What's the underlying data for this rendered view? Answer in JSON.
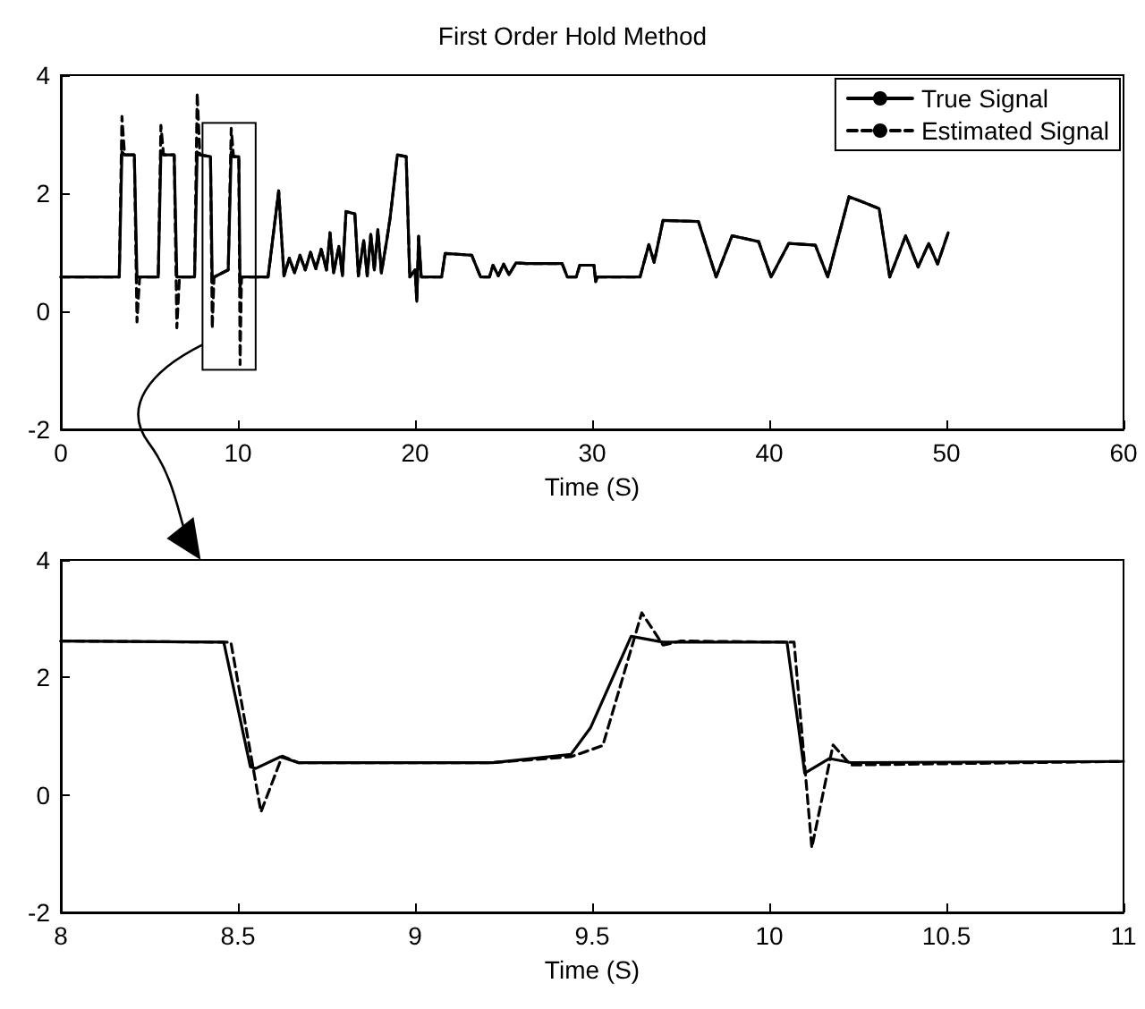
{
  "chart_data": [
    {
      "type": "line",
      "title": "First Order Hold Method",
      "xlabel": "Time (S)",
      "xlim": [
        0,
        60
      ],
      "xticks": [
        0,
        10,
        20,
        30,
        40,
        50,
        60
      ],
      "ylim": [
        -2,
        4
      ],
      "yticks": [
        -2,
        0,
        2,
        4
      ],
      "grid": false,
      "legend": "top right",
      "marker": "none",
      "x": [
        0,
        3.3,
        3.45,
        3.6,
        4.15,
        4.3,
        4.45,
        5.5,
        5.65,
        5.8,
        6.4,
        6.55,
        6.7,
        7.55,
        7.7,
        7.85,
        8.45,
        8.55,
        8.65,
        9.45,
        9.62,
        9.75,
        10.05,
        10.12,
        10.2,
        11.7,
        12.3,
        12.6,
        12.9,
        13.2,
        13.5,
        13.8,
        14.1,
        14.4,
        14.7,
        15.0,
        15.2,
        15.4,
        15.7,
        15.9,
        16.1,
        16.6,
        16.8,
        17.1,
        17.3,
        17.5,
        17.7,
        17.9,
        18.1,
        18.4,
        18.6,
        19.0,
        19.5,
        19.7,
        20.0,
        20.1,
        20.2,
        20.35,
        21.5,
        21.7,
        23.2,
        23.7,
        24.2,
        24.4,
        24.7,
        25.0,
        25.3,
        25.7,
        26.3,
        28.3,
        28.6,
        29.1,
        29.3,
        30.1,
        30.2,
        30.3,
        32.7,
        33.2,
        33.5,
        34.0,
        36.0,
        37.0,
        37.9,
        39.4,
        40.1,
        41.1,
        42.6,
        43.3,
        44.5,
        45.3,
        46.2,
        46.8,
        47.7,
        48.4,
        49.0,
        49.5,
        50.1
      ],
      "series": [
        {
          "name": "True Signal",
          "color": "#000000",
          "line_style": "solid",
          "values": [
            0.58,
            0.58,
            2.7,
            2.65,
            2.65,
            0.58,
            0.58,
            0.58,
            2.7,
            2.65,
            2.65,
            0.58,
            0.58,
            0.58,
            2.7,
            2.65,
            2.62,
            0.48,
            0.58,
            0.7,
            2.7,
            2.62,
            2.62,
            0.4,
            0.58,
            0.58,
            2.04,
            0.6,
            0.9,
            0.65,
            0.95,
            0.7,
            1.0,
            0.72,
            1.05,
            0.7,
            1.33,
            0.65,
            1.1,
            0.6,
            1.69,
            1.65,
            0.6,
            1.2,
            0.6,
            1.3,
            0.7,
            1.38,
            0.65,
            1.2,
            1.6,
            2.65,
            2.62,
            0.58,
            0.7,
            0.17,
            1.27,
            0.58,
            0.58,
            0.98,
            0.95,
            0.58,
            0.58,
            0.78,
            0.6,
            0.8,
            0.62,
            0.82,
            0.81,
            0.81,
            0.58,
            0.58,
            0.78,
            0.78,
            0.5,
            0.58,
            0.58,
            1.13,
            0.83,
            1.54,
            1.52,
            0.58,
            1.28,
            1.18,
            0.58,
            1.15,
            1.12,
            0.58,
            1.94,
            1.85,
            1.74,
            0.58,
            1.28,
            0.75,
            1.15,
            0.8,
            1.33
          ]
        },
        {
          "name": "Estimated Signal",
          "color": "#000000",
          "line_style": "dashed",
          "values": [
            0.58,
            0.58,
            3.3,
            2.65,
            2.65,
            -0.18,
            0.58,
            0.58,
            3.15,
            2.65,
            2.65,
            -0.28,
            0.58,
            0.58,
            3.7,
            2.65,
            2.62,
            -0.29,
            0.58,
            0.7,
            3.1,
            2.62,
            2.62,
            -0.9,
            0.58,
            0.58,
            2.04,
            0.6,
            0.9,
            0.65,
            0.95,
            0.7,
            1.0,
            0.72,
            1.05,
            0.7,
            1.33,
            0.65,
            1.1,
            0.6,
            1.69,
            1.65,
            0.6,
            1.2,
            0.6,
            1.3,
            0.7,
            1.38,
            0.65,
            1.2,
            1.6,
            2.65,
            2.62,
            0.58,
            0.7,
            0.17,
            1.27,
            0.58,
            0.58,
            0.98,
            0.95,
            0.58,
            0.58,
            0.78,
            0.6,
            0.8,
            0.62,
            0.82,
            0.81,
            0.81,
            0.58,
            0.58,
            0.78,
            0.78,
            0.5,
            0.58,
            0.58,
            1.13,
            0.83,
            1.54,
            1.52,
            0.58,
            1.28,
            1.18,
            0.58,
            1.15,
            1.12,
            0.58,
            1.94,
            1.85,
            1.74,
            0.58,
            1.28,
            0.75,
            1.15,
            0.8,
            1.33
          ]
        }
      ]
    },
    {
      "type": "line",
      "xlabel": "Time (S)",
      "xlim": [
        8,
        11
      ],
      "xticks": [
        8,
        8.5,
        9,
        9.5,
        10,
        10.5,
        11
      ],
      "ylim": [
        -2,
        4
      ],
      "yticks": [
        -2,
        0,
        2,
        4
      ],
      "grid": false,
      "legend": false,
      "marker": "none",
      "series": [
        {
          "color": "#000000",
          "line_style": "solid",
          "x": [
            8,
            8.46,
            8.535,
            8.55,
            8.62,
            8.67,
            9.22,
            9.44,
            9.495,
            9.61,
            9.7,
            10.05,
            10.1,
            10.17,
            10.23,
            11
          ],
          "values": [
            2.62,
            2.6,
            0.48,
            0.45,
            0.65,
            0.55,
            0.55,
            0.69,
            1.14,
            2.7,
            2.6,
            2.6,
            0.37,
            0.62,
            0.55,
            0.57
          ]
        },
        {
          "color": "#000000",
          "line_style": "dashed",
          "x": [
            8,
            8.48,
            8.565,
            8.625,
            8.67,
            9.22,
            9.44,
            9.53,
            9.64,
            9.7,
            9.75,
            10.07,
            10.12,
            10.18,
            10.23,
            11
          ],
          "values": [
            2.62,
            2.6,
            -0.29,
            0.66,
            0.55,
            0.55,
            0.65,
            0.84,
            3.1,
            2.55,
            2.62,
            2.6,
            -0.9,
            0.85,
            0.51,
            0.57
          ]
        }
      ]
    }
  ]
}
